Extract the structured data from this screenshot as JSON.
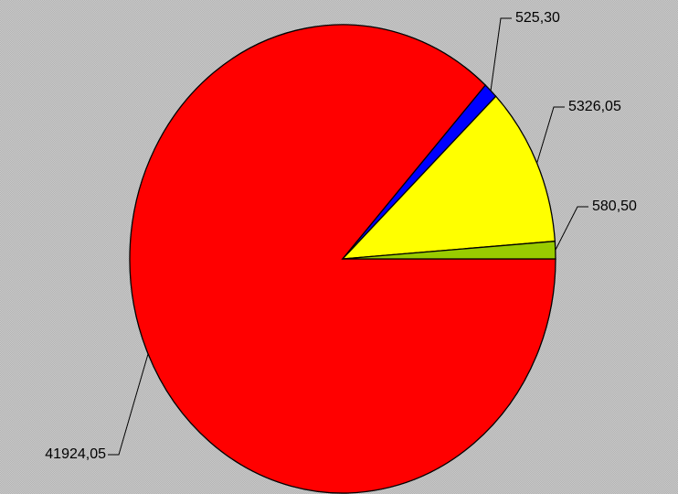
{
  "chart_data": {
    "type": "pie",
    "categories": [
      null,
      null,
      null,
      null
    ],
    "values": [
      41924.05,
      525.3,
      5326.05,
      580.5
    ],
    "value_labels": [
      "41924,05",
      "525,30",
      "5326,05",
      "580,50"
    ],
    "colors": [
      "#ff0000",
      "#0000ff",
      "#ffff00",
      "#99cc00"
    ],
    "start_angle": 0,
    "direction": "clockwise"
  }
}
